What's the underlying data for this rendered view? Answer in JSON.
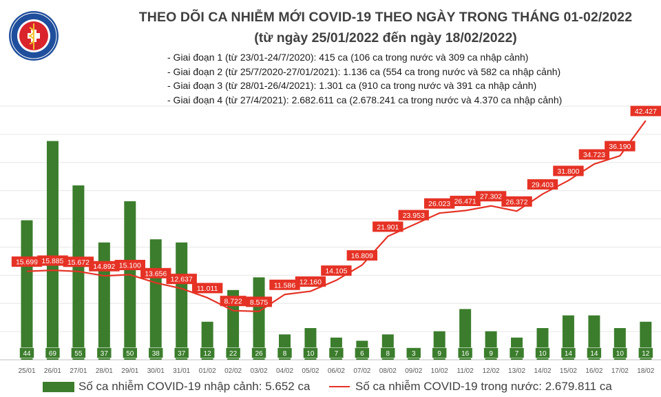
{
  "header": {
    "title": "THEO DÕI CA NHIỄM MỚI COVID-19 THEO NGÀY TRONG THÁNG 01-02/2022",
    "subtitle": "(từ ngày 25/01/2022 đến ngày 18/02/2022)",
    "logo_text_top": "BỘ Y TẾ",
    "logo_text_bottom": "MINISTRY OF HEALTH"
  },
  "notes": [
    "- Giai đoạn 1 (từ 23/01-24/7/2020): 415 ca (106 ca trong nước và 309 ca nhập cảnh)",
    "- Giai đoạn 2 (từ 25/7/2020-27/01/2021): 1.136 ca (554 ca trong nước và 582 ca nhập cảnh)",
    "- Giai đoạn 3 (từ 28/01-26/4/2021): 1.301 ca (910 ca trong nước và 391 ca nhập cảnh)",
    "- Giai đoạn 4 (từ 27/4/2021): 2.682.611 ca (2.678.241 ca trong nước và 4.370 ca nhập cảnh)"
  ],
  "legend": {
    "bar_label": "Số ca nhiễm COVID-19 nhập cảnh: 5.652 ca",
    "line_label": "Số ca nhiễm COVID-19 trong nước: 2.679.811 ca"
  },
  "colors": {
    "bar": "#3b7d2c",
    "bar_label_bg": "#3b7d2c",
    "line": "#e53225",
    "line_label_bg": "#e53225",
    "label_text": "#ffffff"
  },
  "chart_data": {
    "type": "bar",
    "categories": [
      "25/01",
      "26/01",
      "27/01",
      "28/01",
      "29/01",
      "30/01",
      "31/01",
      "01/02",
      "02/02",
      "03/02",
      "04/02",
      "05/02",
      "06/02",
      "07/02",
      "08/02",
      "09/02",
      "10/02",
      "11/02",
      "12/02",
      "13/02",
      "14/02",
      "15/02",
      "16/02",
      "17/02",
      "18/02"
    ],
    "series": [
      {
        "name": "Số ca nhiễm COVID-19 nhập cảnh: 5.652 ca",
        "type": "bar",
        "axis": "right",
        "values": [
          44,
          69,
          55,
          37,
          50,
          38,
          37,
          12,
          22,
          26,
          8,
          10,
          7,
          6,
          8,
          3,
          9,
          16,
          9,
          7,
          10,
          14,
          14,
          10,
          12
        ],
        "labels": [
          "44",
          "69",
          "55",
          "37",
          "50",
          "38",
          "37",
          "12",
          "22",
          "26",
          "8",
          "10",
          "7",
          "6",
          "8",
          "3",
          "9",
          "16",
          "9",
          "7",
          "10",
          "14",
          "14",
          "10",
          "12"
        ]
      },
      {
        "name": "Số ca nhiễm COVID-19 trong nước: 2.679.811 ca",
        "type": "line",
        "axis": "left",
        "values": [
          15699,
          15885,
          15672,
          14892,
          15100,
          13656,
          12637,
          11011,
          8722,
          8575,
          11586,
          12160,
          14105,
          16809,
          21901,
          23953,
          26023,
          26471,
          27302,
          26372,
          29403,
          31800,
          34723,
          36190,
          42427
        ],
        "labels": [
          "15.699",
          "15.885",
          "15.672",
          "14.892",
          "15.100",
          "13.656",
          "12.637",
          "11.011",
          "8.722",
          "8.575",
          "11.586",
          "12.160",
          "14.105",
          "16.809",
          "21.901",
          "23.953",
          "26.023",
          "26.471",
          "27.302",
          "26.372",
          "29.403",
          "31.800",
          "34.723",
          "36.190",
          "42.427"
        ]
      }
    ],
    "y_left_range": [
      0,
      45000
    ],
    "y_right_range": [
      0,
      80
    ],
    "grid": true
  }
}
